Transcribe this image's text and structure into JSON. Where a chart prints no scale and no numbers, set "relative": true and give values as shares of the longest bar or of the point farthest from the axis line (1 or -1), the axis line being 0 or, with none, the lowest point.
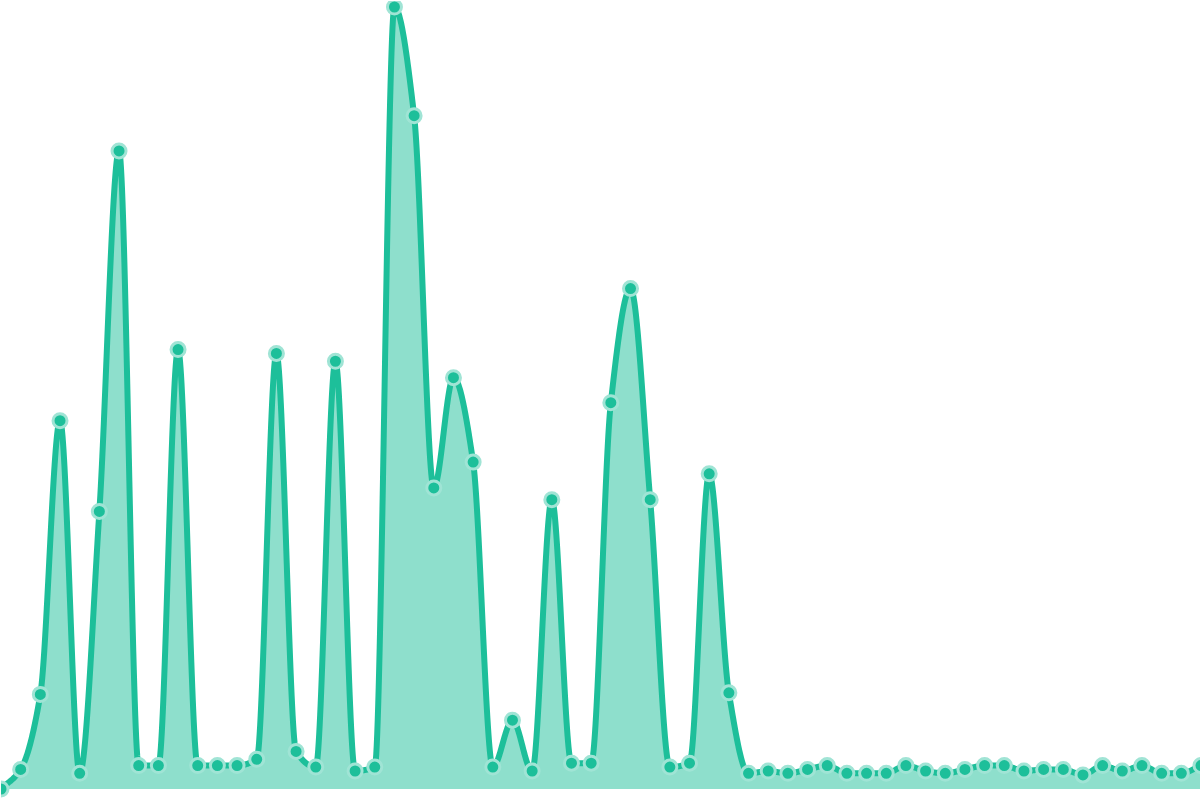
{
  "chart_data": {
    "type": "area",
    "relative": true,
    "marker": "circle",
    "line_style": "solid",
    "grid": false,
    "tick_labels": false,
    "categories": [
      null,
      null,
      null,
      null,
      null,
      null,
      null,
      null,
      null,
      null,
      null,
      null,
      null,
      null,
      null,
      null,
      null,
      null,
      null,
      null,
      null,
      null,
      null,
      null,
      null,
      null,
      null,
      null,
      null,
      null,
      null,
      null,
      null,
      null,
      null,
      null,
      null,
      null,
      null,
      null,
      null,
      null,
      null,
      null,
      null,
      null,
      null,
      null,
      null,
      null,
      null,
      null,
      null,
      null,
      null,
      null,
      null,
      null,
      null,
      null,
      null,
      null
    ],
    "series": [
      {
        "color": "#1dbf9a",
        "values": [
          0,
          0.025,
          0.121,
          0.471,
          0.02,
          0.355,
          0.816,
          0.03,
          0.03,
          0.562,
          0.03,
          0.03,
          0.03,
          0.038,
          0.557,
          0.048,
          0.028,
          0.547,
          0.023,
          0.028,
          1,
          0.861,
          0.385,
          0.526,
          0.418,
          0.028,
          0.088,
          0.023,
          0.37,
          0.033,
          0.033,
          0.494,
          0.64,
          0.37,
          0.028,
          0.033,
          0.403,
          0.123,
          0.02,
          0.023,
          0.02,
          0.025,
          0.03,
          0.02,
          0.02,
          0.02,
          0.03,
          0.023,
          0.02,
          0.025,
          0.03,
          0.03,
          0.023,
          0.025,
          0.025,
          0.018,
          0.03,
          0.023,
          0.03,
          0.02,
          0.02,
          0.03
        ]
      }
    ]
  }
}
